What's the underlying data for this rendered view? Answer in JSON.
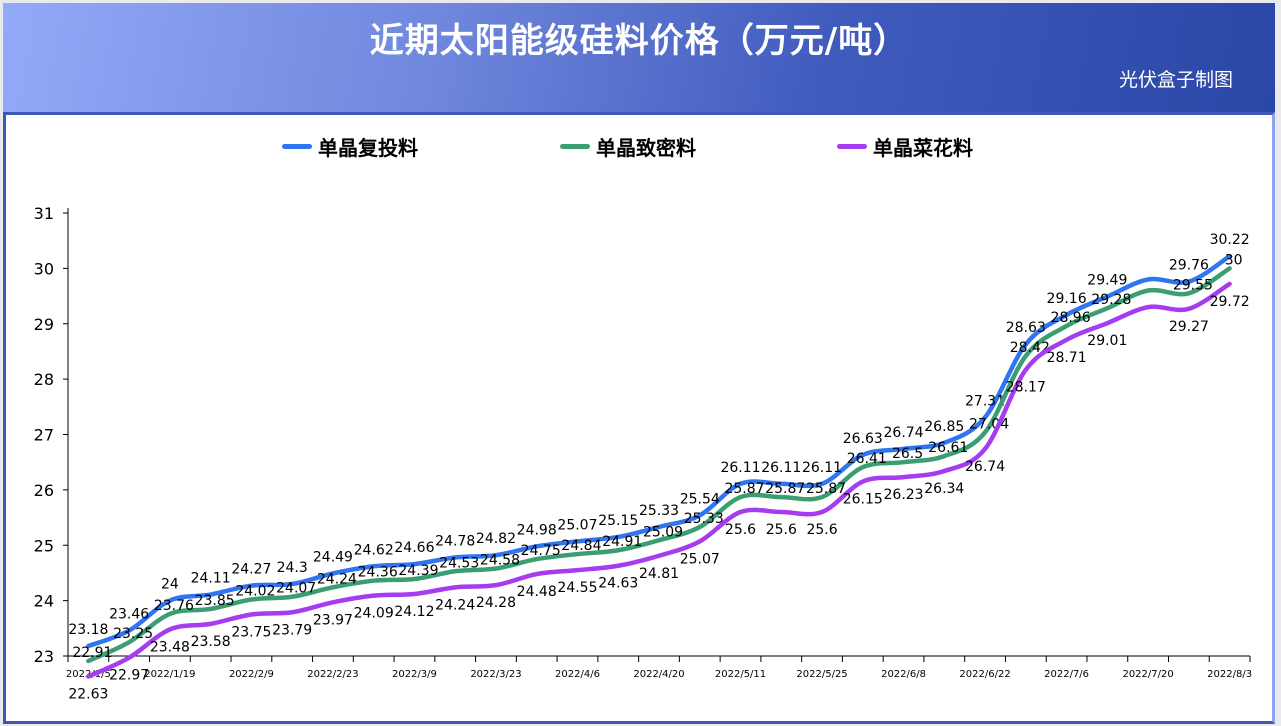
{
  "header": {
    "title": "近期太阳能级硅料价格（万元/吨）",
    "credit": "光伏盒子制图"
  },
  "chart_data": {
    "type": "line",
    "title": "近期太阳能级硅料价格（万元/吨）",
    "xlabel": "",
    "ylabel": "",
    "ylim": [
      23,
      31
    ],
    "yticks": [
      23,
      24,
      25,
      26,
      27,
      28,
      29,
      30,
      31
    ],
    "legend_position": "top-center",
    "grid": false,
    "categories": [
      "2022/1/5",
      "",
      "2022/1/19",
      "",
      "2022/2/9",
      "",
      "2022/2/23",
      "",
      "2022/3/9",
      "",
      "2022/3/23",
      "",
      "2022/4/6",
      "",
      "2022/4/20",
      "",
      "2022/5/11",
      "",
      "2022/5/25",
      "",
      "2022/6/8",
      "",
      "2022/6/22",
      "",
      "2022/7/6",
      "",
      "2022/7/20",
      "",
      "2022/8/3"
    ],
    "unlabeled_point_index": 26,
    "series": [
      {
        "name": "单晶复投料",
        "color": "#2f74f0",
        "values": [
          23.18,
          23.46,
          24,
          24.11,
          24.27,
          24.3,
          24.49,
          24.62,
          24.66,
          24.78,
          24.82,
          24.98,
          25.07,
          25.15,
          25.33,
          25.54,
          26.11,
          26.11,
          26.11,
          26.63,
          26.74,
          26.85,
          27.31,
          28.63,
          29.16,
          29.49,
          29.8,
          29.76,
          30.22
        ]
      },
      {
        "name": "单晶致密料",
        "color": "#3a9e72",
        "values": [
          22.91,
          23.25,
          23.76,
          23.85,
          24.02,
          24.07,
          24.24,
          24.36,
          24.39,
          24.53,
          24.58,
          24.75,
          24.84,
          24.91,
          25.09,
          25.33,
          25.87,
          25.87,
          25.87,
          26.41,
          26.5,
          26.61,
          27.04,
          28.42,
          28.96,
          29.28,
          29.6,
          29.55,
          30
        ]
      },
      {
        "name": "单晶菜花料",
        "color": "#a53cf0",
        "values": [
          22.63,
          22.97,
          23.48,
          23.58,
          23.75,
          23.79,
          23.97,
          24.09,
          24.12,
          24.24,
          24.28,
          24.48,
          24.55,
          24.63,
          24.81,
          25.07,
          25.6,
          25.6,
          25.6,
          26.15,
          26.23,
          26.34,
          26.74,
          28.17,
          28.71,
          29.01,
          29.3,
          29.27,
          29.72
        ]
      }
    ]
  }
}
